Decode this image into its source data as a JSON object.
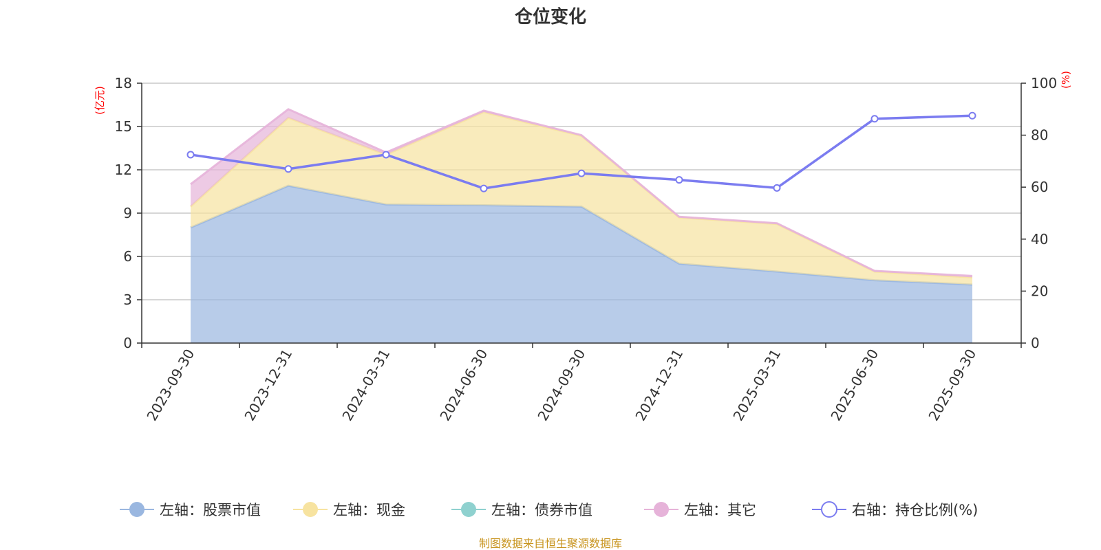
{
  "chart_data": {
    "type": "area",
    "title": "仓位变化",
    "left_axis": {
      "unit": "(亿元)",
      "ticks": [
        0,
        3,
        6,
        9,
        12,
        15,
        18
      ],
      "ylim": [
        0,
        18
      ]
    },
    "right_axis": {
      "unit": "(%)",
      "ticks": [
        0,
        20,
        40,
        60,
        80,
        100
      ],
      "ylim": [
        0,
        100
      ]
    },
    "categories": [
      "2023-09-30",
      "2023-12-31",
      "2024-03-31",
      "2024-06-30",
      "2024-09-30",
      "2024-12-31",
      "2025-03-31",
      "2025-06-30",
      "2025-09-30"
    ],
    "series": [
      {
        "name": "左轴：股票市值",
        "axis": "left",
        "type": "stacked-area",
        "color": "#9ab7e0",
        "values": [
          8.0,
          10.9,
          9.6,
          9.55,
          9.45,
          5.5,
          4.95,
          4.35,
          4.05
        ]
      },
      {
        "name": "左轴：现金",
        "axis": "left",
        "type": "stacked-area",
        "color": "#f7e3a0",
        "values": [
          1.45,
          4.7,
          3.45,
          6.45,
          4.9,
          3.2,
          3.3,
          0.6,
          0.5
        ]
      },
      {
        "name": "左轴：债券市值",
        "axis": "left",
        "type": "stacked-area",
        "color": "#8fd1cf",
        "values": [
          0,
          0,
          0,
          0,
          0,
          0,
          0,
          0,
          0
        ]
      },
      {
        "name": "左轴：其它",
        "axis": "left",
        "type": "stacked-area",
        "color": "#e6b3d9",
        "values": [
          1.55,
          0.6,
          0.15,
          0.1,
          0.05,
          0.05,
          0.05,
          0.05,
          0.1
        ]
      },
      {
        "name": "右轴：持仓比例(%)",
        "axis": "right",
        "type": "line",
        "color": "#7b7cf0",
        "values": [
          72.5,
          67.0,
          72.5,
          59.5,
          65.3,
          62.8,
          59.7,
          86.3,
          87.5
        ]
      }
    ]
  },
  "source_note": "制图数据来自恒生聚源数据库"
}
